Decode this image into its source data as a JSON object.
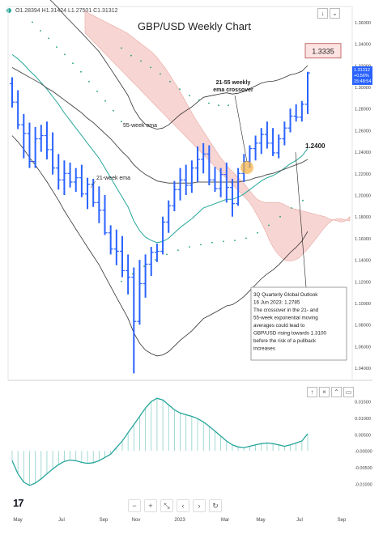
{
  "ohlc_readout": {
    "open": "O1.28394",
    "high": "H1.31424",
    "low": "L1.27501",
    "close": "C1.31312"
  },
  "chart_data": [
    {
      "type": "candlestick",
      "title": "GBP/USD Weekly Chart",
      "x_tick_labels": [
        "May",
        "Jul",
        "Sep",
        "Nov",
        "2023",
        "Mar",
        "May",
        "Jul",
        "Sep"
      ],
      "y_ticks": [
        1.04,
        1.06,
        1.08,
        1.1,
        1.12,
        1.14,
        1.16,
        1.18,
        1.2,
        1.22,
        1.24,
        1.26,
        1.28,
        1.3,
        1.32,
        1.34,
        1.36
      ],
      "y_tick_labels": [
        "1.04000",
        "1.06000",
        "1.08000",
        "1.10000",
        "1.12000",
        "1.14000",
        "1.16000",
        "1.18000",
        "1.20000",
        "1.22000",
        "1.24000",
        "1.26000",
        "1.28000",
        "1.30000",
        "1.32000",
        "1.34000",
        "1.36000"
      ],
      "ylim": [
        1.03,
        1.37
      ],
      "current_price": {
        "value": 1.31312,
        "label": "1.31312",
        "change": "+0.56%",
        "timer": "15:48:54"
      },
      "bars": [
        {
          "o": 1.303,
          "h": 1.309,
          "l": 1.281,
          "c": 1.286
        },
        {
          "o": 1.286,
          "h": 1.297,
          "l": 1.261,
          "c": 1.265
        },
        {
          "o": 1.265,
          "h": 1.275,
          "l": 1.234,
          "c": 1.257
        },
        {
          "o": 1.257,
          "h": 1.267,
          "l": 1.225,
          "c": 1.231
        },
        {
          "o": 1.231,
          "h": 1.263,
          "l": 1.225,
          "c": 1.252
        },
        {
          "o": 1.252,
          "h": 1.265,
          "l": 1.24,
          "c": 1.255
        },
        {
          "o": 1.255,
          "h": 1.268,
          "l": 1.233,
          "c": 1.242
        },
        {
          "o": 1.242,
          "h": 1.258,
          "l": 1.219,
          "c": 1.225
        },
        {
          "o": 1.225,
          "h": 1.238,
          "l": 1.205,
          "c": 1.214
        },
        {
          "o": 1.214,
          "h": 1.232,
          "l": 1.2,
          "c": 1.22
        },
        {
          "o": 1.22,
          "h": 1.23,
          "l": 1.207,
          "c": 1.212
        },
        {
          "o": 1.212,
          "h": 1.225,
          "l": 1.203,
          "c": 1.216
        },
        {
          "o": 1.216,
          "h": 1.228,
          "l": 1.198,
          "c": 1.201
        },
        {
          "o": 1.201,
          "h": 1.216,
          "l": 1.187,
          "c": 1.21
        },
        {
          "o": 1.21,
          "h": 1.215,
          "l": 1.189,
          "c": 1.193
        },
        {
          "o": 1.193,
          "h": 1.208,
          "l": 1.174,
          "c": 1.186
        },
        {
          "o": 1.186,
          "h": 1.2,
          "l": 1.163,
          "c": 1.165
        },
        {
          "o": 1.165,
          "h": 1.172,
          "l": 1.145,
          "c": 1.15
        },
        {
          "o": 1.15,
          "h": 1.168,
          "l": 1.135,
          "c": 1.148
        },
        {
          "o": 1.148,
          "h": 1.162,
          "l": 1.124,
          "c": 1.13
        },
        {
          "o": 1.13,
          "h": 1.145,
          "l": 1.108,
          "c": 1.124
        },
        {
          "o": 1.124,
          "h": 1.133,
          "l": 1.035,
          "c": 1.083
        },
        {
          "o": 1.083,
          "h": 1.14,
          "l": 1.08,
          "c": 1.118
        },
        {
          "o": 1.118,
          "h": 1.145,
          "l": 1.105,
          "c": 1.136
        },
        {
          "o": 1.136,
          "h": 1.152,
          "l": 1.125,
          "c": 1.147
        },
        {
          "o": 1.147,
          "h": 1.155,
          "l": 1.138,
          "c": 1.148
        },
        {
          "o": 1.148,
          "h": 1.18,
          "l": 1.145,
          "c": 1.175
        },
        {
          "o": 1.175,
          "h": 1.195,
          "l": 1.165,
          "c": 1.19
        },
        {
          "o": 1.19,
          "h": 1.213,
          "l": 1.185,
          "c": 1.205
        },
        {
          "o": 1.205,
          "h": 1.225,
          "l": 1.195,
          "c": 1.214
        },
        {
          "o": 1.214,
          "h": 1.228,
          "l": 1.2,
          "c": 1.209
        },
        {
          "o": 1.209,
          "h": 1.232,
          "l": 1.202,
          "c": 1.225
        },
        {
          "o": 1.225,
          "h": 1.245,
          "l": 1.212,
          "c": 1.233
        },
        {
          "o": 1.233,
          "h": 1.248,
          "l": 1.22,
          "c": 1.238
        },
        {
          "o": 1.238,
          "h": 1.246,
          "l": 1.209,
          "c": 1.214
        },
        {
          "o": 1.214,
          "h": 1.226,
          "l": 1.203,
          "c": 1.206
        },
        {
          "o": 1.206,
          "h": 1.225,
          "l": 1.198,
          "c": 1.219
        },
        {
          "o": 1.219,
          "h": 1.23,
          "l": 1.193,
          "c": 1.207
        },
        {
          "o": 1.207,
          "h": 1.215,
          "l": 1.18,
          "c": 1.192
        },
        {
          "o": 1.192,
          "h": 1.225,
          "l": 1.19,
          "c": 1.22
        },
        {
          "o": 1.22,
          "h": 1.238,
          "l": 1.212,
          "c": 1.231
        },
        {
          "o": 1.231,
          "h": 1.246,
          "l": 1.225,
          "c": 1.243
        },
        {
          "o": 1.243,
          "h": 1.255,
          "l": 1.232,
          "c": 1.248
        },
        {
          "o": 1.248,
          "h": 1.262,
          "l": 1.238,
          "c": 1.256
        },
        {
          "o": 1.256,
          "h": 1.268,
          "l": 1.243,
          "c": 1.248
        },
        {
          "o": 1.248,
          "h": 1.262,
          "l": 1.236,
          "c": 1.239
        },
        {
          "o": 1.239,
          "h": 1.256,
          "l": 1.234,
          "c": 1.252
        },
        {
          "o": 1.252,
          "h": 1.268,
          "l": 1.246,
          "c": 1.262
        },
        {
          "o": 1.262,
          "h": 1.28,
          "l": 1.258,
          "c": 1.273
        },
        {
          "o": 1.273,
          "h": 1.284,
          "l": 1.268,
          "c": 1.272
        },
        {
          "o": 1.272,
          "h": 1.287,
          "l": 1.268,
          "c": 1.284
        },
        {
          "o": 1.284,
          "h": 1.314,
          "l": 1.275,
          "c": 1.313
        }
      ],
      "series": [
        {
          "name": "21-week ema",
          "values": [
            1.33,
            1.326,
            1.321,
            1.315,
            1.31,
            1.304,
            1.298,
            1.291,
            1.284,
            1.276,
            1.269,
            1.262,
            1.255,
            1.248,
            1.241,
            1.234,
            1.225,
            1.216,
            1.207,
            1.198,
            1.189,
            1.176,
            1.167,
            1.161,
            1.158,
            1.156,
            1.157,
            1.16,
            1.165,
            1.17,
            1.174,
            1.178,
            1.183,
            1.188,
            1.19,
            1.192,
            1.194,
            1.196,
            1.196,
            1.198,
            1.201,
            1.205,
            1.209,
            1.213,
            1.216,
            1.218,
            1.221,
            1.225,
            1.229,
            1.232,
            1.236,
            1.243
          ]
        },
        {
          "name": "55-week ema",
          "values": [
            1.318,
            1.315,
            1.312,
            1.309,
            1.306,
            1.303,
            1.299,
            1.296,
            1.292,
            1.288,
            1.284,
            1.28,
            1.276,
            1.271,
            1.267,
            1.262,
            1.257,
            1.252,
            1.246,
            1.24,
            1.235,
            1.228,
            1.223,
            1.219,
            1.216,
            1.213,
            1.212,
            1.211,
            1.211,
            1.211,
            1.211,
            1.211,
            1.212,
            1.212,
            1.212,
            1.212,
            1.212,
            1.212,
            1.212,
            1.212,
            1.213,
            1.214,
            1.216,
            1.217,
            1.219,
            1.22,
            1.222,
            1.224,
            1.226,
            1.228,
            1.23,
            1.233
          ]
        }
      ],
      "ichimoku_cloud": {
        "top": [
          1.37,
          1.368,
          1.366,
          1.364,
          1.362,
          1.36,
          1.358,
          1.356,
          1.354,
          1.352,
          1.35,
          1.347,
          1.344,
          1.341,
          1.338,
          1.335,
          1.332,
          1.328,
          1.323,
          1.318,
          1.312,
          1.306,
          1.3,
          1.293,
          1.286,
          1.279,
          1.272,
          1.266,
          1.26,
          1.254,
          1.248,
          1.242,
          1.236,
          1.231,
          1.226,
          1.222,
          1.218,
          1.214,
          1.21,
          1.205,
          1.2,
          1.196,
          1.194,
          1.193,
          1.193,
          1.193,
          1.193,
          1.192,
          1.19,
          1.188,
          1.187,
          1.186,
          1.185,
          1.184,
          1.183,
          1.182,
          1.181,
          1.18,
          1.178,
          1.177,
          1.176,
          1.175,
          1.176,
          1.18
        ],
        "bottom": [
          1.35,
          1.346,
          1.342,
          1.338,
          1.334,
          1.33,
          1.326,
          1.322,
          1.318,
          1.314,
          1.31,
          1.306,
          1.302,
          1.298,
          1.294,
          1.29,
          1.286,
          1.282,
          1.278,
          1.274,
          1.27,
          1.266,
          1.262,
          1.258,
          1.254,
          1.25,
          1.246,
          1.242,
          1.238,
          1.234,
          1.23,
          1.226,
          1.222,
          1.218,
          1.214,
          1.21,
          1.206,
          1.202,
          1.198,
          1.194,
          1.188,
          1.181,
          1.174,
          1.166,
          1.157,
          1.15,
          1.145,
          1.141,
          1.139,
          1.139,
          1.14,
          1.142,
          1.146,
          1.15,
          1.155,
          1.16,
          1.165,
          1.17,
          1.174,
          1.177,
          1.178,
          1.178,
          1.177,
          1.176
        ]
      },
      "annotations": [
        {
          "text": "1.3335",
          "kind": "price-box",
          "value": 1.3335
        },
        {
          "text": "21-55 weekly\nema crossover",
          "kind": "label"
        },
        {
          "text": "55-week ema",
          "kind": "label"
        },
        {
          "text": "21-week ema",
          "kind": "label"
        },
        {
          "text": "1.2400",
          "kind": "label",
          "value": 1.24
        },
        {
          "text": "3Q Quarterly Global Outlook\n16 Jun 2023: 1.2785\nThe crossover in the 21- and\n55-week exponential moving\naverages could lead to\nGBP/USD rising towards 1.3100\nbefore the risk of a pullback\nincreases",
          "kind": "callout"
        }
      ]
    },
    {
      "type": "line",
      "title": "",
      "y_tick_labels": [
        "0.01500",
        "0.01000",
        "0.00500",
        "-0.00000",
        "-0.00500",
        "-0.01000"
      ],
      "y_ticks": [
        0.015,
        0.01,
        0.005,
        0,
        -0.005,
        -0.01
      ],
      "ylim": [
        -0.0135,
        0.0185
      ],
      "series": [
        {
          "name": "",
          "values": [
            -0.003,
            -0.007,
            -0.0095,
            -0.0105,
            -0.0098,
            -0.0085,
            -0.007,
            -0.0055,
            -0.0042,
            -0.0032,
            -0.0028,
            -0.003,
            -0.0035,
            -0.0038,
            -0.0036,
            -0.003,
            -0.002,
            -0.001,
            0.001,
            0.003,
            0.0055,
            0.008,
            0.0105,
            0.013,
            0.015,
            0.016,
            0.0155,
            0.014,
            0.0125,
            0.0115,
            0.011,
            0.0105,
            0.0098,
            0.0088,
            0.0075,
            0.006,
            0.0045,
            0.003,
            0.0018,
            0.0012,
            0.001,
            0.0014,
            0.0018,
            0.0022,
            0.0024,
            0.0022,
            0.0018,
            0.0014,
            0.0018,
            0.0024,
            0.003,
            0.0052
          ]
        }
      ]
    }
  ],
  "colors": {
    "bar": "#2962ff",
    "ema21": "#26a69a",
    "ema55": "#555555",
    "band": "#333333",
    "cloud": "#f4c7c3",
    "dots": "#1b9e77",
    "osc": "#26a69a",
    "crossover": "#f5b041"
  },
  "toolbar": {
    "down_icon": "↓",
    "expand_icon": "⌄",
    "up_icon": "↑",
    "close_icon": "×",
    "collapse_icon": "⌃"
  },
  "nav": {
    "minus": "−",
    "plus": "+",
    "fit": "⤡",
    "prev": "‹",
    "next": "›",
    "reset": "↻"
  },
  "logo_text": "17"
}
